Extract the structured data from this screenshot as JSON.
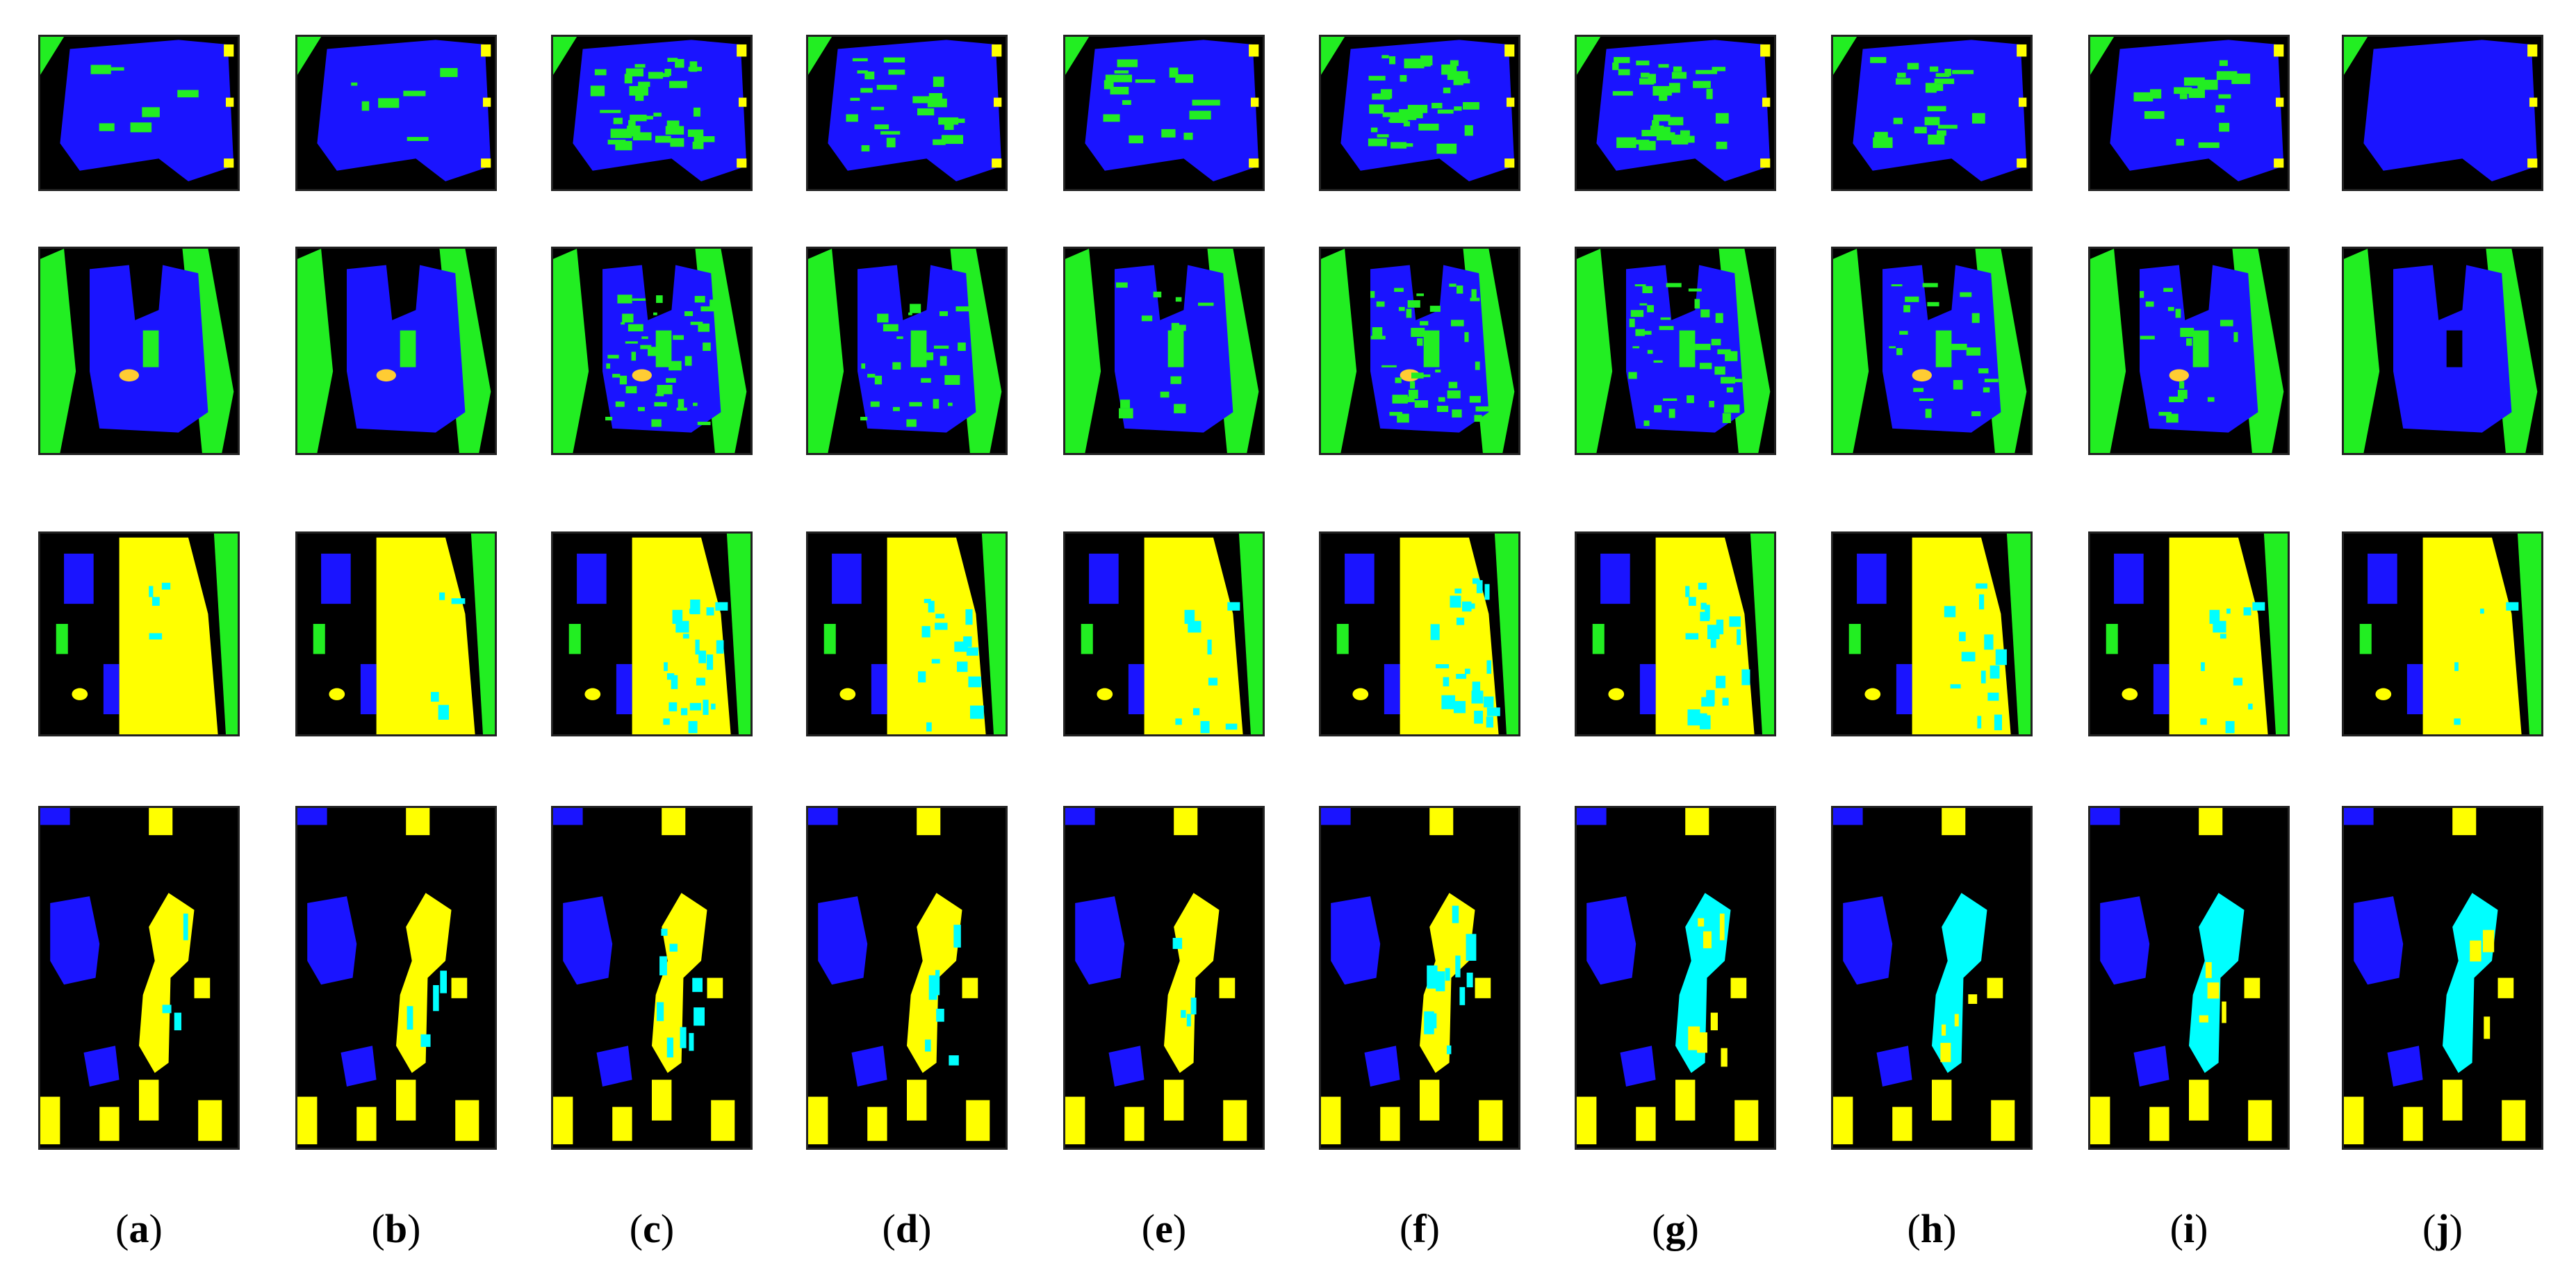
{
  "figure": {
    "columns": [
      {
        "paren_open": "(",
        "letter": "a",
        "paren_close": ")"
      },
      {
        "paren_open": "(",
        "letter": "b",
        "paren_close": ")"
      },
      {
        "paren_open": "(",
        "letter": "c",
        "paren_close": ")"
      },
      {
        "paren_open": "(",
        "letter": "d",
        "paren_close": ")"
      },
      {
        "paren_open": "(",
        "letter": "e",
        "paren_close": ")"
      },
      {
        "paren_open": "(",
        "letter": "f",
        "paren_close": ")"
      },
      {
        "paren_open": "(",
        "letter": "g",
        "paren_close": ")"
      },
      {
        "paren_open": "(",
        "letter": "h",
        "paren_close": ")"
      },
      {
        "paren_open": "(",
        "letter": "i",
        "paren_close": ")"
      },
      {
        "paren_open": "(",
        "letter": "j",
        "paren_close": ")"
      }
    ],
    "class_colors": {
      "background": "#000000",
      "building": "#1a14ff",
      "vegetation": "#22ee22",
      "bare_soil": "#ffff00",
      "water": "#00ffff",
      "orange_blob": "#ffcc33"
    }
  }
}
